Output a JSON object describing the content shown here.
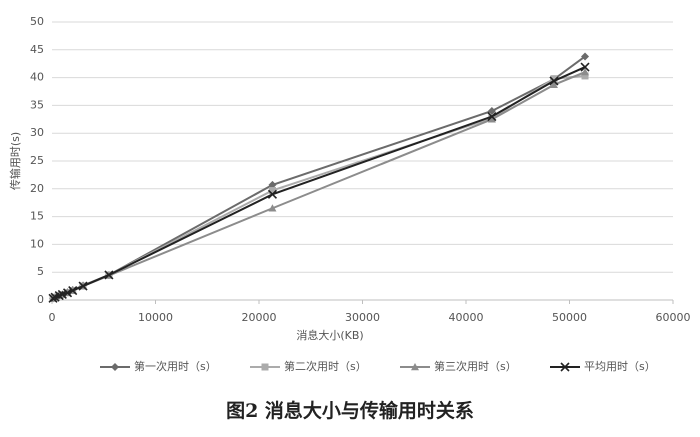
{
  "chart_data": {
    "type": "line",
    "caption": "图2  消息大小与传输用时关系",
    "x_label": "消息大小(KB)",
    "y_label": "传输用时(s)",
    "x": [
      100,
      300,
      700,
      1000,
      1500,
      2000,
      3000,
      5500,
      21300,
      42500,
      48500,
      51500
    ],
    "series": [
      {
        "name": "第一次用时（s）",
        "color": "#6b6b6b",
        "marker": "diamond",
        "values": [
          0.3,
          0.5,
          0.8,
          1.0,
          1.4,
          1.8,
          2.6,
          4.5,
          20.7,
          34.0,
          39.7,
          43.8
        ]
      },
      {
        "name": "第二次用时（s）",
        "color": "#ababab",
        "marker": "square",
        "values": [
          0.3,
          0.5,
          0.8,
          1.0,
          1.3,
          1.7,
          2.5,
          4.5,
          19.7,
          32.7,
          39.8,
          40.3
        ]
      },
      {
        "name": "第三次用时（s）",
        "color": "#8c8c8c",
        "marker": "triangle",
        "values": [
          0.3,
          0.5,
          0.8,
          1.0,
          1.3,
          1.7,
          2.5,
          4.4,
          16.5,
          32.5,
          38.7,
          41.0
        ]
      },
      {
        "name": "平均用时（s）",
        "color": "#222222",
        "marker": "cross",
        "values": [
          0.3,
          0.5,
          0.8,
          1.0,
          1.3,
          1.7,
          2.5,
          4.5,
          19.0,
          33.0,
          39.4,
          41.9
        ]
      }
    ],
    "xlim": [
      0,
      60000
    ],
    "xticks": [
      0,
      10000,
      20000,
      30000,
      40000,
      50000,
      60000
    ],
    "ylim": [
      0,
      50
    ],
    "yticks": [
      0,
      5,
      10,
      15,
      20,
      25,
      30,
      35,
      40,
      45,
      50
    ],
    "grid": true,
    "legend": "bottom"
  }
}
